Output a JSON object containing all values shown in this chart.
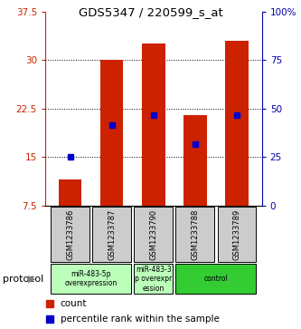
{
  "title": "GDS5347 / 220599_s_at",
  "samples": [
    "GSM1233786",
    "GSM1233787",
    "GSM1233790",
    "GSM1233788",
    "GSM1233789"
  ],
  "bar_heights": [
    11.5,
    30.0,
    32.5,
    21.5,
    33.0
  ],
  "bar_base": 7.5,
  "blue_marker_values": [
    15.0,
    20.0,
    21.5,
    17.0,
    21.5
  ],
  "ylim_left": [
    7.5,
    37.5
  ],
  "yticks_left": [
    7.5,
    15.0,
    22.5,
    30.0,
    37.5
  ],
  "yticks_right_labels": [
    "0",
    "25",
    "50",
    "75",
    "100%"
  ],
  "yticks_right_values": [
    7.5,
    15.0,
    22.5,
    30.0,
    37.5
  ],
  "bar_color": "#cc2200",
  "blue_color": "#0000cc",
  "protocol_groups": [
    {
      "label": "miR-483-5p\noverexpression",
      "span": [
        0,
        2
      ],
      "color": "#bbffbb"
    },
    {
      "label": "miR-483-3\np overexpr\nession",
      "span": [
        2,
        3
      ],
      "color": "#bbffbb"
    },
    {
      "label": "control",
      "span": [
        3,
        5
      ],
      "color": "#33cc33"
    }
  ],
  "legend_count_color": "#cc2200",
  "legend_percentile_color": "#0000cc",
  "left_axis_color": "#cc2200",
  "right_axis_color": "#0000aa",
  "sample_box_color": "#cccccc",
  "figsize": [
    3.33,
    3.63
  ],
  "dpi": 100
}
